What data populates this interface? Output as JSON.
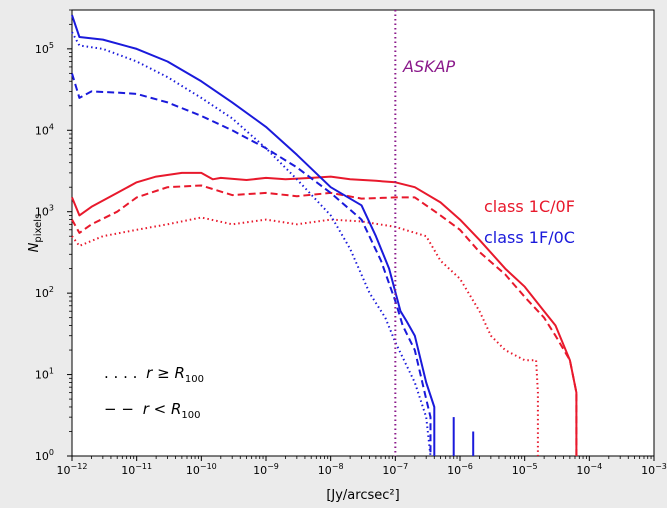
{
  "chart_data": {
    "type": "line",
    "title": "",
    "xlabel": "[Jy/arcsec²]",
    "ylabel": "N_pixels",
    "ylabel_main": "N",
    "ylabel_sub": "pixels",
    "x_scale": "log",
    "y_scale": "log",
    "xlim": [
      1e-12,
      0.001
    ],
    "ylim": [
      1,
      300000
    ],
    "x_ticks": [
      {
        "value": 1e-12,
        "base": "10",
        "exp": "−12"
      },
      {
        "value": 1e-11,
        "base": "10",
        "exp": "−11"
      },
      {
        "value": 1e-10,
        "base": "10",
        "exp": "−10"
      },
      {
        "value": 1e-09,
        "base": "10",
        "exp": "−9"
      },
      {
        "value": 1e-08,
        "base": "10",
        "exp": "−8"
      },
      {
        "value": 1e-07,
        "base": "10",
        "exp": "−7"
      },
      {
        "value": 1e-06,
        "base": "10",
        "exp": "−6"
      },
      {
        "value": 1e-05,
        "base": "10",
        "exp": "−5"
      },
      {
        "value": 0.0001,
        "base": "10",
        "exp": "−4"
      },
      {
        "value": 0.001,
        "base": "10",
        "exp": "−3"
      }
    ],
    "y_ticks": [
      {
        "value": 1,
        "base": "10",
        "exp": "0"
      },
      {
        "value": 10,
        "base": "10",
        "exp": "1"
      },
      {
        "value": 100,
        "base": "10",
        "exp": "2"
      },
      {
        "value": 1000,
        "base": "10",
        "exp": "3"
      },
      {
        "value": 10000,
        "base": "10",
        "exp": "4"
      },
      {
        "value": 100000,
        "base": "10",
        "exp": "5"
      }
    ],
    "vline": {
      "x": 1e-07,
      "label": "ASKAP",
      "color": "#8b1a8b"
    },
    "colors": {
      "red": "#e8192c",
      "blue": "#1a1adb"
    },
    "series": [
      {
        "key": "red_all",
        "color": "#e8192c",
        "dash": "solid",
        "points": [
          [
            1e-12,
            1500
          ],
          [
            1.3e-12,
            900
          ],
          [
            2e-12,
            1150
          ],
          [
            5e-12,
            1700
          ],
          [
            1e-11,
            2300
          ],
          [
            2e-11,
            2700
          ],
          [
            5e-11,
            3000
          ],
          [
            1e-10,
            3000
          ],
          [
            1.5e-10,
            2500
          ],
          [
            2e-10,
            2600
          ],
          [
            5e-10,
            2450
          ],
          [
            1e-09,
            2600
          ],
          [
            2e-09,
            2500
          ],
          [
            5e-09,
            2600
          ],
          [
            1e-08,
            2700
          ],
          [
            2e-08,
            2500
          ],
          [
            5e-08,
            2400
          ],
          [
            1e-07,
            2300
          ],
          [
            2e-07,
            2000
          ],
          [
            5e-07,
            1300
          ],
          [
            1e-06,
            800
          ],
          [
            2e-06,
            450
          ],
          [
            5e-06,
            200
          ],
          [
            1e-05,
            120
          ],
          [
            2e-05,
            60
          ],
          [
            3e-05,
            40
          ],
          [
            5e-05,
            15
          ],
          [
            6.3e-05,
            6
          ],
          [
            6.3e-05,
            1
          ]
        ]
      },
      {
        "key": "red_inner",
        "color": "#e8192c",
        "dash": "dashed",
        "points": [
          [
            1e-12,
            800
          ],
          [
            1.3e-12,
            550
          ],
          [
            2e-12,
            700
          ],
          [
            5e-12,
            1000
          ],
          [
            1e-11,
            1500
          ],
          [
            3e-11,
            2000
          ],
          [
            1e-10,
            2100
          ],
          [
            3e-10,
            1600
          ],
          [
            1e-09,
            1700
          ],
          [
            3e-09,
            1550
          ],
          [
            1e-08,
            1700
          ],
          [
            3e-08,
            1450
          ],
          [
            1e-07,
            1500
          ],
          [
            2e-07,
            1500
          ],
          [
            5e-07,
            900
          ],
          [
            1e-06,
            600
          ],
          [
            2e-06,
            320
          ],
          [
            5e-06,
            170
          ],
          [
            1e-05,
            90
          ],
          [
            2e-05,
            50
          ],
          [
            3e-05,
            30
          ],
          [
            5e-05,
            15
          ],
          [
            6.3e-05,
            6
          ],
          [
            6.3e-05,
            1
          ]
        ]
      },
      {
        "key": "red_outer",
        "color": "#e8192c",
        "dash": "dotted",
        "points": [
          [
            1e-12,
            500
          ],
          [
            1.3e-12,
            380
          ],
          [
            3e-12,
            500
          ],
          [
            1e-11,
            600
          ],
          [
            3e-11,
            700
          ],
          [
            1e-10,
            850
          ],
          [
            3e-10,
            700
          ],
          [
            1e-09,
            800
          ],
          [
            3e-09,
            700
          ],
          [
            1e-08,
            800
          ],
          [
            3e-08,
            760
          ],
          [
            1e-07,
            650
          ],
          [
            3e-07,
            500
          ],
          [
            5e-07,
            250
          ],
          [
            1e-06,
            150
          ],
          [
            2e-06,
            60
          ],
          [
            3e-06,
            30
          ],
          [
            5e-06,
            20
          ],
          [
            1e-05,
            15
          ],
          [
            1.5e-05,
            15
          ],
          [
            1.6e-05,
            6
          ],
          [
            1.6e-05,
            1
          ]
        ]
      },
      {
        "key": "blue_all",
        "color": "#1a1adb",
        "dash": "solid",
        "points": [
          [
            1e-12,
            260000
          ],
          [
            1.3e-12,
            140000
          ],
          [
            3e-12,
            130000
          ],
          [
            1e-11,
            100000
          ],
          [
            3e-11,
            70000
          ],
          [
            1e-10,
            40000
          ],
          [
            3e-10,
            22000
          ],
          [
            1e-09,
            11000
          ],
          [
            3e-09,
            5000
          ],
          [
            1e-08,
            2000
          ],
          [
            3e-08,
            1200
          ],
          [
            5e-08,
            500
          ],
          [
            8e-08,
            200
          ],
          [
            1.2e-07,
            60
          ],
          [
            1.5e-07,
            45
          ],
          [
            2e-07,
            30
          ],
          [
            3e-07,
            8
          ],
          [
            4e-07,
            4
          ],
          [
            4e-07,
            1
          ]
        ]
      },
      {
        "key": "blue_inner",
        "color": "#1a1adb",
        "dash": "dashed",
        "points": [
          [
            1e-12,
            50000
          ],
          [
            1.3e-12,
            25000
          ],
          [
            2e-12,
            30000
          ],
          [
            5e-12,
            29000
          ],
          [
            1e-11,
            28000
          ],
          [
            3e-11,
            22000
          ],
          [
            1e-10,
            15000
          ],
          [
            3e-10,
            10000
          ],
          [
            1e-09,
            6000
          ],
          [
            3e-09,
            3500
          ],
          [
            1e-08,
            1700
          ],
          [
            3e-08,
            800
          ],
          [
            6e-08,
            250
          ],
          [
            1e-07,
            80
          ],
          [
            1.3e-07,
            40
          ],
          [
            2e-07,
            20
          ],
          [
            3e-07,
            5
          ],
          [
            3.5e-07,
            3
          ],
          [
            3.5e-07,
            1
          ]
        ]
      },
      {
        "key": "blue_outer",
        "color": "#1a1adb",
        "dash": "dotted",
        "points": [
          [
            1e-12,
            160000
          ],
          [
            1.3e-12,
            110000
          ],
          [
            3e-12,
            100000
          ],
          [
            1e-11,
            70000
          ],
          [
            3e-11,
            45000
          ],
          [
            1e-10,
            25000
          ],
          [
            3e-10,
            14000
          ],
          [
            1e-09,
            6000
          ],
          [
            3e-09,
            2500
          ],
          [
            1e-08,
            900
          ],
          [
            2e-08,
            350
          ],
          [
            4e-08,
            100
          ],
          [
            7e-08,
            50
          ],
          [
            1e-07,
            25
          ],
          [
            2e-07,
            8
          ],
          [
            3e-07,
            3
          ],
          [
            3.5e-07,
            1
          ]
        ]
      },
      {
        "key": "blue_spike1",
        "color": "#1a1adb",
        "dash": "solid",
        "points": [
          [
            8e-07,
            1
          ],
          [
            8e-07,
            3
          ]
        ]
      },
      {
        "key": "blue_spike2",
        "color": "#1a1adb",
        "dash": "solid",
        "points": [
          [
            1.6e-06,
            1
          ],
          [
            1.6e-06,
            2
          ]
        ]
      }
    ],
    "legend": [
      {
        "label": "class 1C/0F",
        "color": "#e8192c"
      },
      {
        "label": "class 1F/0C",
        "color": "#1a1adb"
      }
    ],
    "style_legend": {
      "dotted_prefix": ". . . .",
      "dotted_expr": "r ≥ R",
      "dashed_prefix": "− −",
      "dashed_expr": "r < R",
      "subscript": "100"
    }
  }
}
